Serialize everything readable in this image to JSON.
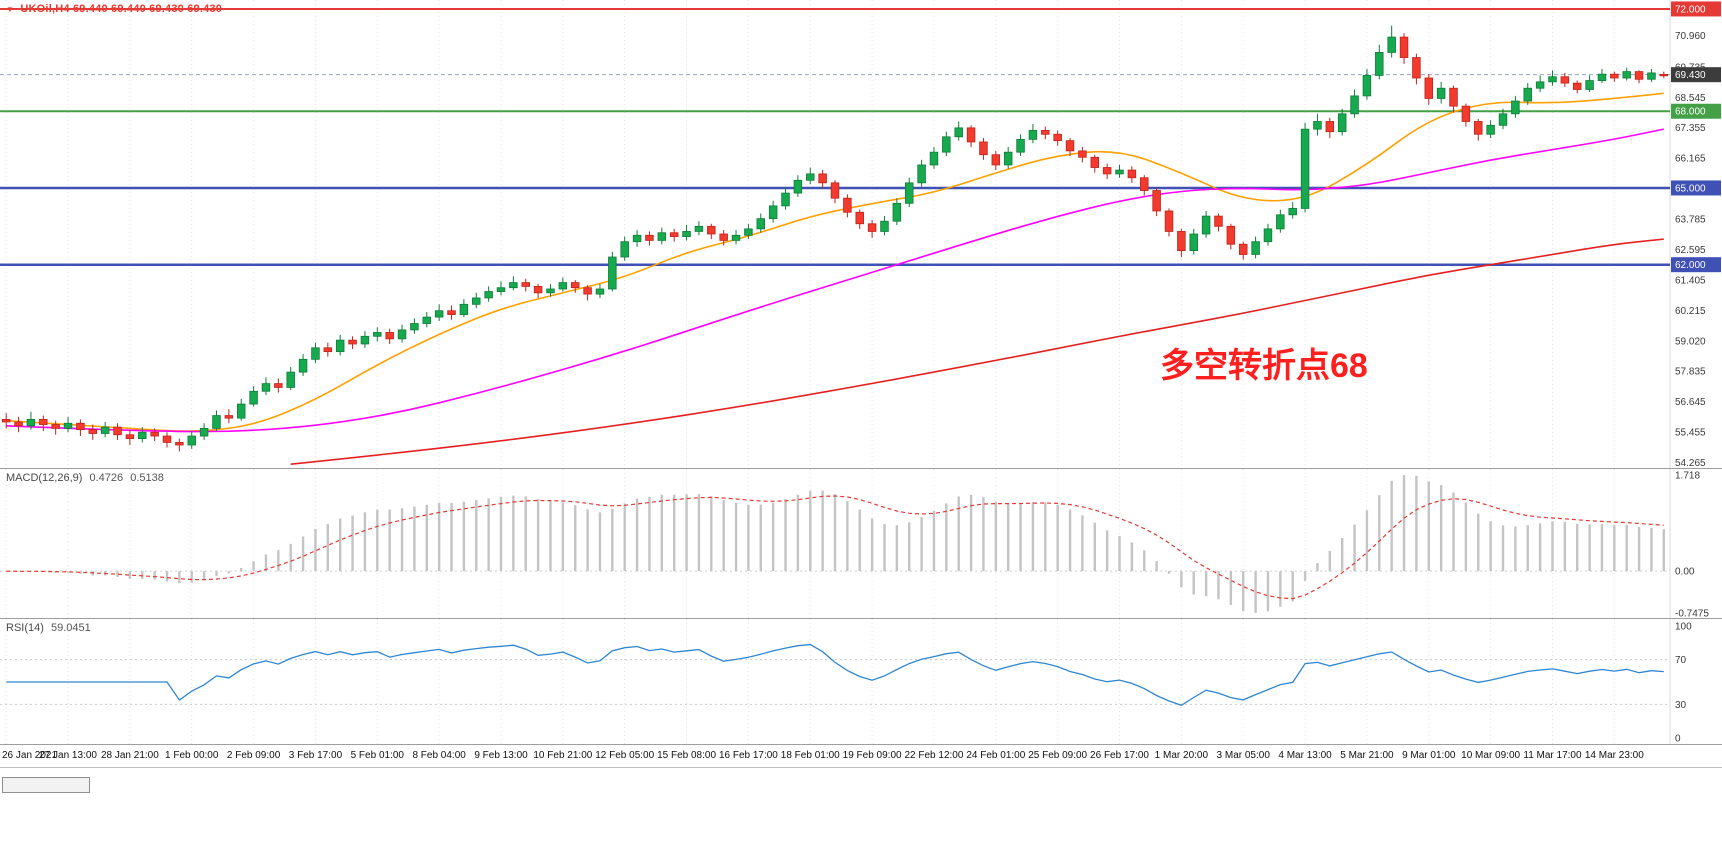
{
  "window": {
    "symbol": "UKOil,H4",
    "ohlc_text": "69.440 69.440 69.430 69.430"
  },
  "annotation": {
    "text": "多空转折点68"
  },
  "colors": {
    "bull": "#16a94e",
    "bull_stroke": "#0c7d38",
    "bear": "#f23b2e",
    "bear_stroke": "#bf2317",
    "ma_fast": "#ffa000",
    "ma_mid": "#ff00ff",
    "ma_slow": "#e62020",
    "grid": "#e3e3e3",
    "axis_text": "#3a3a3a",
    "level_red": "#e53935",
    "level_green": "#43a047",
    "level_blue": "#3f51b5",
    "price_line": "#9aa7b8",
    "price_badge_bg": "#3c3c3c",
    "macd_hist": "#c4c4c4",
    "macd_signal": "#e53935",
    "rsi_line": "#2f86d2",
    "rsi_level": "#c9c9c9",
    "title": "#e8392f"
  },
  "main_chart": {
    "scale": {
      "min": 54.05,
      "max": 72.35
    },
    "y_ticks": [
      "70.960",
      "69.735",
      "68.545",
      "67.355",
      "66.165",
      "63.785",
      "62.595",
      "61.405",
      "60.215",
      "59.020",
      "57.835",
      "56.645",
      "55.455",
      "54.265"
    ],
    "levels": [
      {
        "value": 72.0,
        "color": "#e53935",
        "width": 2,
        "badge": "72.000"
      },
      {
        "value": 68.0,
        "color": "#43a047",
        "width": 2,
        "badge": "68.000"
      },
      {
        "value": 65.0,
        "color": "#3f51b5",
        "width": 2.5,
        "badge": "65.000"
      },
      {
        "value": 62.0,
        "color": "#3f51b5",
        "width": 2.5,
        "badge": "62.000"
      }
    ],
    "price_line": {
      "value": 69.43,
      "badge": "69.430"
    }
  },
  "chart_data": {
    "type": "candlestick",
    "title": "UKOil H4",
    "candles_per_label": 5,
    "x_labels": [
      "26 Jan 2021",
      "27 Jan 13:00",
      "28 Jan 21:00",
      "1 Feb 00:00",
      "2 Feb 09:00",
      "3 Feb 17:00",
      "5 Feb 01:00",
      "8 Feb 04:00",
      "9 Feb 13:00",
      "10 Feb 21:00",
      "12 Feb 05:00",
      "15 Feb 08:00",
      "16 Feb 17:00",
      "18 Feb 01:00",
      "19 Feb 09:00",
      "22 Feb 12:00",
      "24 Feb 01:00",
      "25 Feb 09:00",
      "26 Feb 17:00",
      "1 Mar 20:00",
      "3 Mar 05:00",
      "4 Mar 13:00",
      "5 Mar 21:00",
      "9 Mar 01:00",
      "10 Mar 09:00",
      "11 Mar 17:00",
      "14 Mar 23:00"
    ],
    "candles_ohlc": [
      [
        55.95,
        56.2,
        55.6,
        55.85
      ],
      [
        55.85,
        56.05,
        55.45,
        55.7
      ],
      [
        55.7,
        56.25,
        55.55,
        55.95
      ],
      [
        55.95,
        56.1,
        55.5,
        55.75
      ],
      [
        55.75,
        55.9,
        55.35,
        55.6
      ],
      [
        55.6,
        56.05,
        55.45,
        55.8
      ],
      [
        55.8,
        55.95,
        55.3,
        55.55
      ],
      [
        55.55,
        55.75,
        55.15,
        55.4
      ],
      [
        55.4,
        55.85,
        55.25,
        55.65
      ],
      [
        55.65,
        55.8,
        55.15,
        55.35
      ],
      [
        55.35,
        55.55,
        54.95,
        55.2
      ],
      [
        55.2,
        55.65,
        55.05,
        55.45
      ],
      [
        55.45,
        55.6,
        55.1,
        55.3
      ],
      [
        55.3,
        55.45,
        54.85,
        55.05
      ],
      [
        55.05,
        55.2,
        54.7,
        54.95
      ],
      [
        54.95,
        55.5,
        54.8,
        55.3
      ],
      [
        55.3,
        55.8,
        55.15,
        55.6
      ],
      [
        55.6,
        56.3,
        55.5,
        56.1
      ],
      [
        56.1,
        56.35,
        55.8,
        56.0
      ],
      [
        56.0,
        56.75,
        55.9,
        56.55
      ],
      [
        56.55,
        57.25,
        56.45,
        57.05
      ],
      [
        57.05,
        57.6,
        56.9,
        57.35
      ],
      [
        57.35,
        57.55,
        57.0,
        57.2
      ],
      [
        57.2,
        58.0,
        57.1,
        57.8
      ],
      [
        57.8,
        58.5,
        57.65,
        58.3
      ],
      [
        58.3,
        58.95,
        58.15,
        58.75
      ],
      [
        58.75,
        58.95,
        58.4,
        58.6
      ],
      [
        58.6,
        59.25,
        58.45,
        59.05
      ],
      [
        59.05,
        59.2,
        58.7,
        58.9
      ],
      [
        58.9,
        59.4,
        58.75,
        59.2
      ],
      [
        59.2,
        59.55,
        59.0,
        59.35
      ],
      [
        59.35,
        59.5,
        58.9,
        59.1
      ],
      [
        59.1,
        59.65,
        58.95,
        59.45
      ],
      [
        59.45,
        59.9,
        59.3,
        59.7
      ],
      [
        59.7,
        60.15,
        59.55,
        59.95
      ],
      [
        59.95,
        60.45,
        59.8,
        60.2
      ],
      [
        60.2,
        60.4,
        59.85,
        60.05
      ],
      [
        60.05,
        60.65,
        59.95,
        60.45
      ],
      [
        60.45,
        60.9,
        60.3,
        60.7
      ],
      [
        60.7,
        61.15,
        60.55,
        60.95
      ],
      [
        60.95,
        61.35,
        60.8,
        61.1
      ],
      [
        61.1,
        61.55,
        61.0,
        61.3
      ],
      [
        61.3,
        61.45,
        60.95,
        61.15
      ],
      [
        61.15,
        61.25,
        60.7,
        60.9
      ],
      [
        60.9,
        61.25,
        60.75,
        61.05
      ],
      [
        61.05,
        61.5,
        60.95,
        61.3
      ],
      [
        61.3,
        61.4,
        60.9,
        61.1
      ],
      [
        61.1,
        61.2,
        60.6,
        60.85
      ],
      [
        60.85,
        61.25,
        60.7,
        61.05
      ],
      [
        61.05,
        62.5,
        60.95,
        62.3
      ],
      [
        62.3,
        63.1,
        62.15,
        62.9
      ],
      [
        62.9,
        63.35,
        62.7,
        63.15
      ],
      [
        63.15,
        63.3,
        62.75,
        62.95
      ],
      [
        62.95,
        63.45,
        62.8,
        63.25
      ],
      [
        63.25,
        63.4,
        62.9,
        63.1
      ],
      [
        63.1,
        63.55,
        62.95,
        63.3
      ],
      [
        63.3,
        63.7,
        63.15,
        63.5
      ],
      [
        63.5,
        63.6,
        63.0,
        63.2
      ],
      [
        63.2,
        63.35,
        62.75,
        62.95
      ],
      [
        62.95,
        63.35,
        62.8,
        63.15
      ],
      [
        63.15,
        63.6,
        63.0,
        63.4
      ],
      [
        63.4,
        64.0,
        63.25,
        63.8
      ],
      [
        63.8,
        64.5,
        63.65,
        64.3
      ],
      [
        64.3,
        65.0,
        64.15,
        64.8
      ],
      [
        64.8,
        65.5,
        64.65,
        65.3
      ],
      [
        65.3,
        65.8,
        65.15,
        65.55
      ],
      [
        65.55,
        65.7,
        65.0,
        65.2
      ],
      [
        65.2,
        65.3,
        64.4,
        64.6
      ],
      [
        64.6,
        64.75,
        63.85,
        64.05
      ],
      [
        64.05,
        64.15,
        63.4,
        63.6
      ],
      [
        63.6,
        63.75,
        63.05,
        63.3
      ],
      [
        63.3,
        63.9,
        63.15,
        63.7
      ],
      [
        63.7,
        64.6,
        63.55,
        64.4
      ],
      [
        64.4,
        65.4,
        64.25,
        65.2
      ],
      [
        65.2,
        66.1,
        65.05,
        65.9
      ],
      [
        65.9,
        66.6,
        65.75,
        66.4
      ],
      [
        66.4,
        67.2,
        66.25,
        67.0
      ],
      [
        67.0,
        67.6,
        66.85,
        67.35
      ],
      [
        67.35,
        67.45,
        66.6,
        66.8
      ],
      [
        66.8,
        66.95,
        66.1,
        66.3
      ],
      [
        66.3,
        66.45,
        65.7,
        65.9
      ],
      [
        65.9,
        66.6,
        65.75,
        66.4
      ],
      [
        66.4,
        67.1,
        66.25,
        66.9
      ],
      [
        66.9,
        67.5,
        66.75,
        67.25
      ],
      [
        67.25,
        67.4,
        66.9,
        67.1
      ],
      [
        67.1,
        67.25,
        66.65,
        66.85
      ],
      [
        66.85,
        66.95,
        66.25,
        66.45
      ],
      [
        66.45,
        66.6,
        66.0,
        66.2
      ],
      [
        66.2,
        66.3,
        65.6,
        65.8
      ],
      [
        65.8,
        65.95,
        65.35,
        65.55
      ],
      [
        65.55,
        65.9,
        65.4,
        65.7
      ],
      [
        65.7,
        65.85,
        65.2,
        65.4
      ],
      [
        65.4,
        65.5,
        64.7,
        64.9
      ],
      [
        64.9,
        65.0,
        63.9,
        64.1
      ],
      [
        64.1,
        64.2,
        63.1,
        63.3
      ],
      [
        63.3,
        63.4,
        62.3,
        62.55
      ],
      [
        62.55,
        63.4,
        62.4,
        63.2
      ],
      [
        63.2,
        64.1,
        63.05,
        63.9
      ],
      [
        63.9,
        64.0,
        63.3,
        63.5
      ],
      [
        63.5,
        63.6,
        62.6,
        62.8
      ],
      [
        62.8,
        62.9,
        62.2,
        62.4
      ],
      [
        62.4,
        63.1,
        62.25,
        62.9
      ],
      [
        62.9,
        63.6,
        62.75,
        63.4
      ],
      [
        63.4,
        64.15,
        63.25,
        63.95
      ],
      [
        63.95,
        64.45,
        63.8,
        64.2
      ],
      [
        64.2,
        67.55,
        64.05,
        67.3
      ],
      [
        67.3,
        67.9,
        67.05,
        67.6
      ],
      [
        67.6,
        67.75,
        66.95,
        67.2
      ],
      [
        67.2,
        68.1,
        67.05,
        67.9
      ],
      [
        67.9,
        68.85,
        67.75,
        68.6
      ],
      [
        68.6,
        69.65,
        68.45,
        69.4
      ],
      [
        69.4,
        70.6,
        69.25,
        70.3
      ],
      [
        70.3,
        71.35,
        70.1,
        70.9
      ],
      [
        70.9,
        71.05,
        69.85,
        70.1
      ],
      [
        70.1,
        70.25,
        69.05,
        69.3
      ],
      [
        69.3,
        69.45,
        68.25,
        68.5
      ],
      [
        68.5,
        69.15,
        68.3,
        68.9
      ],
      [
        68.9,
        69.0,
        67.95,
        68.2
      ],
      [
        68.2,
        68.3,
        67.4,
        67.6
      ],
      [
        67.6,
        67.7,
        66.85,
        67.1
      ],
      [
        67.1,
        67.65,
        66.95,
        67.45
      ],
      [
        67.45,
        68.1,
        67.3,
        67.9
      ],
      [
        67.9,
        68.6,
        67.75,
        68.4
      ],
      [
        68.4,
        69.1,
        68.25,
        68.9
      ],
      [
        68.9,
        69.4,
        68.75,
        69.15
      ],
      [
        69.15,
        69.6,
        69.0,
        69.35
      ],
      [
        69.35,
        69.5,
        68.95,
        69.1
      ],
      [
        69.1,
        69.2,
        68.7,
        68.85
      ],
      [
        68.85,
        69.4,
        68.75,
        69.2
      ],
      [
        69.2,
        69.65,
        69.1,
        69.45
      ],
      [
        69.45,
        69.55,
        69.15,
        69.3
      ],
      [
        69.3,
        69.7,
        69.2,
        69.55
      ],
      [
        69.55,
        69.6,
        69.1,
        69.25
      ],
      [
        69.25,
        69.65,
        69.15,
        69.5
      ],
      [
        69.44,
        69.55,
        69.3,
        69.43
      ]
    ],
    "ma_lines": [
      {
        "name": "ma-fast-orange",
        "color": "#ffa000",
        "anchors": [
          [
            0,
            55.9
          ],
          [
            10,
            55.6
          ],
          [
            15,
            55.45
          ],
          [
            20,
            55.7
          ],
          [
            25,
            56.7
          ],
          [
            30,
            58.1
          ],
          [
            35,
            59.3
          ],
          [
            40,
            60.3
          ],
          [
            45,
            60.9
          ],
          [
            50,
            61.5
          ],
          [
            55,
            62.5
          ],
          [
            60,
            63.1
          ],
          [
            65,
            63.9
          ],
          [
            70,
            64.4
          ],
          [
            75,
            64.8
          ],
          [
            80,
            65.6
          ],
          [
            85,
            66.3
          ],
          [
            90,
            66.5
          ],
          [
            95,
            65.6
          ],
          [
            100,
            64.5
          ],
          [
            105,
            64.5
          ],
          [
            110,
            65.9
          ],
          [
            115,
            67.7
          ],
          [
            120,
            68.4
          ],
          [
            125,
            68.3
          ],
          [
            130,
            68.5
          ],
          [
            134,
            68.7
          ]
        ]
      },
      {
        "name": "ma-mid-magenta",
        "color": "#ff00ff",
        "anchors": [
          [
            0,
            55.7
          ],
          [
            10,
            55.5
          ],
          [
            20,
            55.45
          ],
          [
            30,
            56.0
          ],
          [
            40,
            57.2
          ],
          [
            50,
            58.6
          ],
          [
            60,
            60.2
          ],
          [
            70,
            61.7
          ],
          [
            80,
            63.2
          ],
          [
            85,
            63.9
          ],
          [
            90,
            64.5
          ],
          [
            95,
            64.9
          ],
          [
            100,
            65.0
          ],
          [
            105,
            64.9
          ],
          [
            110,
            65.1
          ],
          [
            115,
            65.6
          ],
          [
            120,
            66.1
          ],
          [
            125,
            66.5
          ],
          [
            130,
            66.9
          ],
          [
            134,
            67.3
          ]
        ]
      },
      {
        "name": "ma-slow-red",
        "color": "#e62020",
        "anchors": [
          [
            23,
            54.2
          ],
          [
            30,
            54.55
          ],
          [
            40,
            55.1
          ],
          [
            50,
            55.75
          ],
          [
            60,
            56.5
          ],
          [
            70,
            57.35
          ],
          [
            80,
            58.25
          ],
          [
            90,
            59.2
          ],
          [
            95,
            59.65
          ],
          [
            100,
            60.1
          ],
          [
            105,
            60.6
          ],
          [
            110,
            61.1
          ],
          [
            115,
            61.6
          ],
          [
            120,
            62.0
          ],
          [
            125,
            62.4
          ],
          [
            130,
            62.8
          ],
          [
            134,
            63.0
          ]
        ]
      }
    ],
    "indicators": {
      "macd": {
        "label": "MACD(12,26,9)",
        "value_main": "0.4726",
        "value_signal": "0.5138",
        "fast": 12,
        "slow": 26,
        "signal": 9,
        "scale": {
          "min": -0.7475,
          "max": 1.718
        },
        "y_ticks": [
          "1.718",
          "0.00",
          "-0.7475"
        ]
      },
      "rsi": {
        "label": "RSI(14)",
        "value": "59.0451",
        "period": 14,
        "levels": [
          30,
          70
        ],
        "scale": {
          "min": 0,
          "max": 100
        },
        "y_ticks": [
          "100",
          "70",
          "30",
          "0"
        ]
      }
    }
  }
}
